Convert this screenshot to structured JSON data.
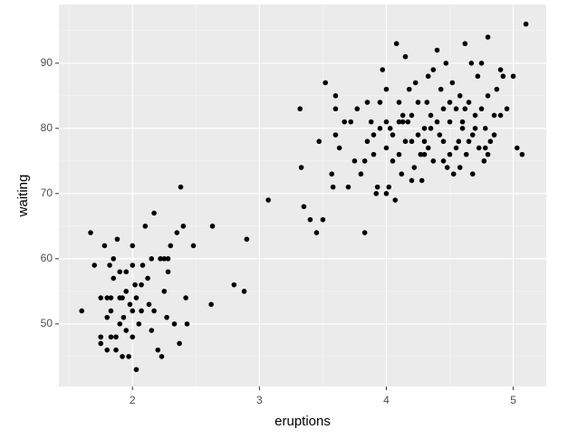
{
  "chart_data": {
    "type": "scatter",
    "x_label": "eruptions",
    "y_label": "waiting",
    "xlim": [
      1.42,
      5.26
    ],
    "ylim": [
      40.4,
      99.0
    ],
    "xticks": [
      2,
      3,
      4,
      5
    ],
    "yticks": [
      50,
      60,
      70,
      80,
      90
    ],
    "grid": true,
    "color": "#000000",
    "x": [
      1.6,
      1.67,
      1.7,
      1.75,
      1.75,
      1.75,
      1.78,
      1.8,
      1.8,
      1.8,
      1.82,
      1.83,
      1.83,
      1.85,
      1.85,
      1.87,
      1.87,
      1.88,
      1.9,
      1.9,
      1.92,
      1.93,
      1.95,
      1.95,
      1.97,
      1.98,
      2.0,
      2.0,
      2.02,
      2.03,
      2.03,
      2.05,
      2.07,
      2.08,
      2.1,
      2.12,
      2.13,
      2.15,
      2.17,
      2.17,
      2.2,
      2.22,
      2.23,
      2.25,
      2.27,
      2.28,
      2.3,
      2.33,
      2.35,
      2.37,
      2.38,
      2.4,
      2.42,
      2.43,
      2.48,
      2.63,
      2.62,
      2.8,
      2.88,
      2.9,
      3.07,
      1.83,
      1.92,
      2.0,
      1.95,
      2.07,
      2.15,
      2.25,
      2.28,
      1.9,
      2.0,
      3.32,
      3.33,
      3.35,
      3.4,
      3.45,
      3.47,
      3.5,
      3.52,
      3.57,
      3.58,
      3.6,
      3.6,
      3.6,
      3.63,
      3.67,
      3.7,
      3.72,
      3.75,
      3.77,
      3.8,
      3.83,
      3.83,
      3.85,
      3.85,
      3.88,
      3.9,
      3.92,
      3.93,
      3.95,
      3.97,
      4.0,
      4.0,
      4.0,
      4.02,
      4.03,
      4.05,
      4.07,
      4.08,
      4.1,
      4.1,
      4.12,
      4.13,
      4.15,
      4.17,
      4.18,
      4.2,
      4.22,
      4.23,
      4.25,
      4.27,
      4.28,
      4.3,
      4.32,
      4.33,
      4.35,
      4.37,
      4.37,
      4.4,
      4.42,
      4.43,
      4.45,
      4.47,
      4.48,
      4.5,
      4.5,
      4.52,
      4.53,
      4.55,
      4.57,
      4.58,
      4.6,
      4.62,
      4.63,
      4.65,
      4.67,
      4.68,
      4.7,
      4.72,
      4.73,
      4.75,
      4.77,
      4.78,
      4.8,
      4.8,
      4.82,
      4.85,
      4.87,
      4.9,
      4.92,
      4.95,
      5.0,
      5.03,
      5.07,
      5.1,
      4.0,
      4.05,
      4.1,
      4.15,
      4.2,
      4.25,
      4.3,
      4.35,
      4.4,
      4.45,
      4.5,
      4.55,
      4.6,
      4.65,
      4.7,
      4.75,
      4.8,
      3.9,
      3.95,
      4.45,
      4.58,
      4.3,
      4.2,
      4.33,
      4.13,
      4.68,
      4.78,
      4.62,
      4.85,
      4.9
    ],
    "values": [
      52,
      64,
      59,
      54,
      47,
      48,
      62,
      54,
      51,
      46,
      59,
      54,
      52,
      60,
      57,
      48,
      46,
      63,
      54,
      58,
      45,
      51,
      55,
      49,
      45,
      53,
      59,
      62,
      56,
      54,
      43,
      50,
      56,
      59,
      65,
      57,
      53,
      60,
      67,
      52,
      46,
      60,
      45,
      55,
      51,
      58,
      62,
      50,
      64,
      47,
      71,
      65,
      54,
      50,
      62,
      65,
      53,
      56,
      55,
      63,
      69,
      48,
      54,
      48,
      58,
      52,
      49,
      60,
      60,
      50,
      52,
      83,
      74,
      68,
      66,
      64,
      78,
      66,
      87,
      73,
      71,
      85,
      79,
      83,
      77,
      81,
      71,
      81,
      75,
      83,
      73,
      64,
      75,
      78,
      84,
      81,
      76,
      70,
      71,
      80,
      89,
      77,
      86,
      70,
      71,
      80,
      75,
      69,
      93,
      76,
      84,
      73,
      82,
      91,
      81,
      86,
      78,
      74,
      87,
      79,
      76,
      72,
      80,
      84,
      77,
      82,
      89,
      75,
      92,
      79,
      86,
      83,
      90,
      74,
      81,
      76,
      87,
      73,
      83,
      78,
      85,
      80,
      93,
      76,
      84,
      90,
      79,
      82,
      88,
      77,
      90,
      75,
      80,
      94,
      85,
      78,
      82,
      86,
      89,
      88,
      83,
      88,
      77,
      76,
      96,
      81,
      79,
      81,
      78,
      82,
      84,
      78,
      80,
      81,
      78,
      84,
      77,
      81,
      78,
      80,
      83,
      76,
      79,
      84,
      75,
      74,
      76,
      72,
      88,
      81,
      73,
      77,
      83,
      79,
      82
    ]
  }
}
